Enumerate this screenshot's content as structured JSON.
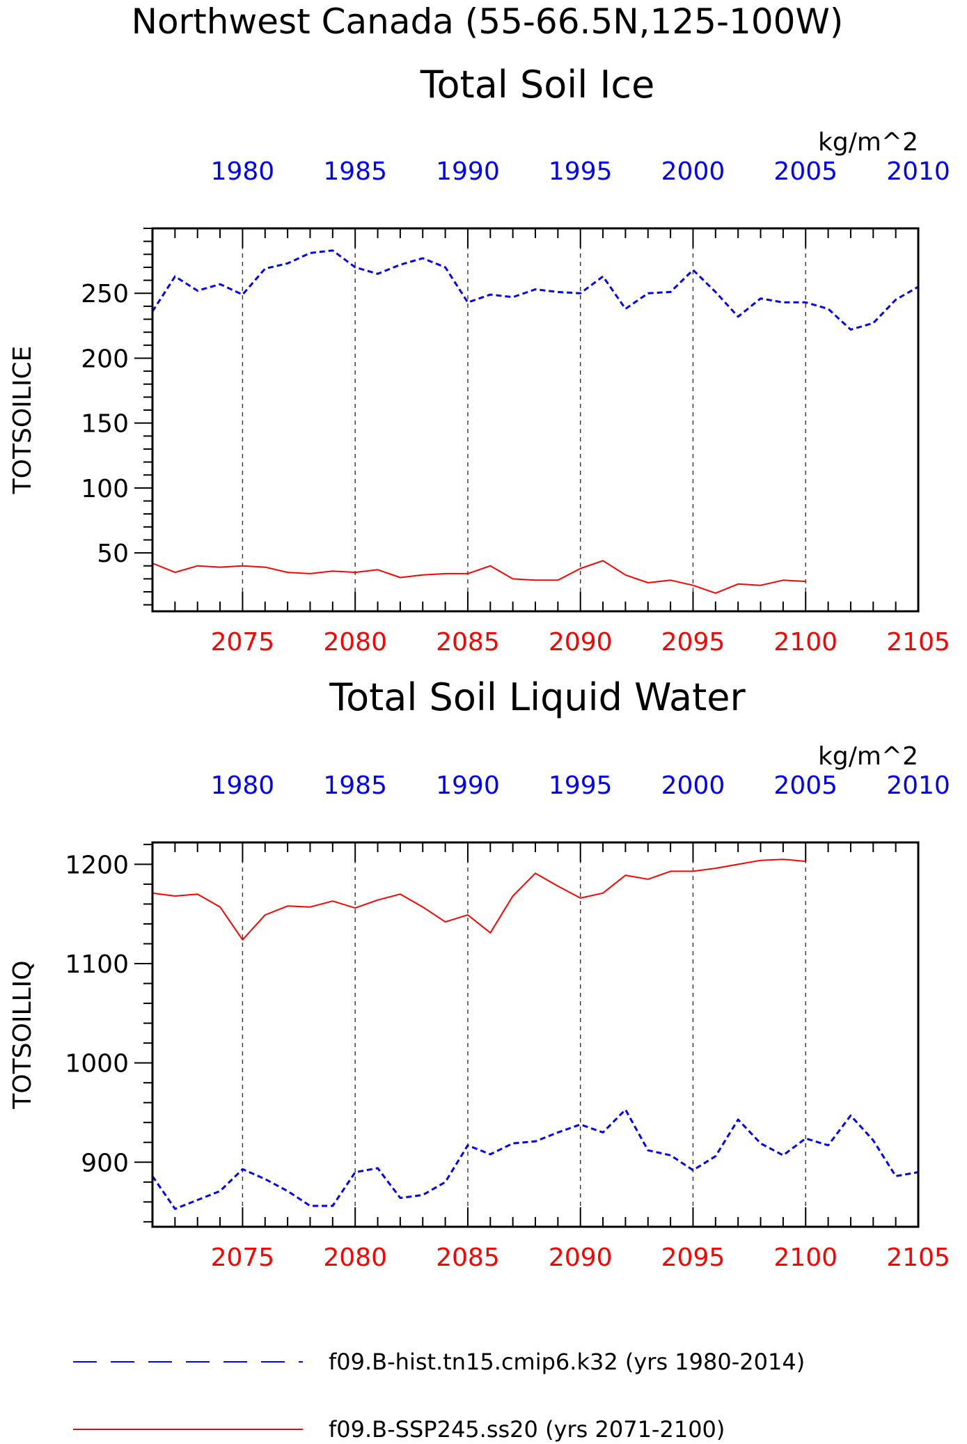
{
  "figure": {
    "title": "Northwest Canada (55-66.5N,125-100W)",
    "legend": [
      {
        "label": "f09.B-hist.tn15.cmip6.k32 (yrs 1980-2014)",
        "color": "#0000ff",
        "style": "dashed"
      },
      {
        "label": "f09.B-SSP245.ss20 (yrs 2071-2100)",
        "color": "#ff0000",
        "style": "solid"
      }
    ]
  },
  "chart_data": [
    {
      "type": "line",
      "title": "Total Soil Ice",
      "ylabel": "TOTSOILICE",
      "units": "kg/m^2",
      "ylim": [
        5,
        300
      ],
      "yticks": [
        50,
        100,
        150,
        200,
        250
      ],
      "y_minor_step": 10,
      "grid": "vertical dashed at bottom-axis major ticks",
      "x_bottom": {
        "lim": [
          2071,
          2105
        ],
        "ticks": [
          2075,
          2080,
          2085,
          2090,
          2095,
          2100,
          2105
        ],
        "color": "#ff0000"
      },
      "x_top": {
        "lim": [
          1976,
          2010
        ],
        "ticks": [
          1980,
          1985,
          1990,
          1995,
          2000,
          2005,
          2010
        ],
        "color": "#0000ff"
      },
      "series": [
        {
          "name": "f09.B-hist.tn15.cmip6.k32 (yrs 1980-2014)",
          "axis": "top",
          "color": "#0000ff",
          "style": "dashed",
          "x": [
            1976,
            1977,
            1978,
            1979,
            1980,
            1981,
            1982,
            1983,
            1984,
            1985,
            1986,
            1987,
            1988,
            1989,
            1990,
            1991,
            1992,
            1993,
            1994,
            1995,
            1996,
            1997,
            1998,
            1999,
            2000,
            2001,
            2002,
            2003,
            2004,
            2005,
            2006,
            2007,
            2008,
            2009,
            2010
          ],
          "y": [
            236,
            263,
            252,
            257,
            249,
            269,
            273,
            281,
            283,
            270,
            265,
            272,
            277,
            270,
            243,
            249,
            247,
            253,
            251,
            250,
            263,
            238,
            250,
            251,
            268,
            251,
            232,
            246,
            243,
            243,
            238,
            222,
            227,
            245,
            255
          ]
        },
        {
          "name": "f09.B-SSP245.ss20 (yrs 2071-2100)",
          "axis": "bottom",
          "color": "#ff0000",
          "style": "solid",
          "x": [
            2071,
            2072,
            2073,
            2074,
            2075,
            2076,
            2077,
            2078,
            2079,
            2080,
            2081,
            2082,
            2083,
            2084,
            2085,
            2086,
            2087,
            2088,
            2089,
            2090,
            2091,
            2092,
            2093,
            2094,
            2095,
            2096,
            2097,
            2098,
            2099,
            2100
          ],
          "y": [
            42,
            35,
            40,
            39,
            40,
            39,
            35,
            34,
            36,
            35,
            37,
            31,
            33,
            34,
            34,
            40,
            30,
            29,
            29,
            38,
            44,
            33,
            27,
            29,
            25,
            19,
            26,
            25,
            29,
            28
          ]
        }
      ]
    },
    {
      "type": "line",
      "title": "Total Soil Liquid Water",
      "ylabel": "TOTSOILLIQ",
      "units": "kg/m^2",
      "ylim": [
        835,
        1222
      ],
      "yticks": [
        900,
        1000,
        1100,
        1200
      ],
      "y_minor_step": 20,
      "grid": "vertical dashed at bottom-axis major ticks",
      "x_bottom": {
        "lim": [
          2071,
          2105
        ],
        "ticks": [
          2075,
          2080,
          2085,
          2090,
          2095,
          2100,
          2105
        ],
        "color": "#ff0000"
      },
      "x_top": {
        "lim": [
          1976,
          2010
        ],
        "ticks": [
          1980,
          1985,
          1990,
          1995,
          2000,
          2005,
          2010
        ],
        "color": "#0000ff"
      },
      "series": [
        {
          "name": "f09.B-hist.tn15.cmip6.k32 (yrs 1980-2014)",
          "axis": "top",
          "color": "#0000ff",
          "style": "dashed",
          "x": [
            1976,
            1977,
            1978,
            1979,
            1980,
            1981,
            1982,
            1983,
            1984,
            1985,
            1986,
            1987,
            1988,
            1989,
            1990,
            1991,
            1992,
            1993,
            1994,
            1995,
            1996,
            1997,
            1998,
            1999,
            2000,
            2001,
            2002,
            2003,
            2004,
            2005,
            2006,
            2007,
            2008,
            2009,
            2010
          ],
          "y": [
            886,
            853,
            862,
            871,
            893,
            883,
            871,
            856,
            856,
            890,
            894,
            864,
            867,
            880,
            917,
            908,
            919,
            921,
            930,
            938,
            930,
            953,
            912,
            907,
            892,
            906,
            943,
            919,
            907,
            924,
            917,
            947,
            922,
            886,
            890
          ]
        },
        {
          "name": "f09.B-SSP245.ss20 (yrs 2071-2100)",
          "axis": "bottom",
          "color": "#ff0000",
          "style": "solid",
          "x": [
            2071,
            2072,
            2073,
            2074,
            2075,
            2076,
            2077,
            2078,
            2079,
            2080,
            2081,
            2082,
            2083,
            2084,
            2085,
            2086,
            2087,
            2088,
            2089,
            2090,
            2091,
            2092,
            2093,
            2094,
            2095,
            2096,
            2097,
            2098,
            2099,
            2100
          ],
          "y": [
            1171,
            1168,
            1170,
            1157,
            1124,
            1149,
            1158,
            1157,
            1163,
            1156,
            1164,
            1170,
            1157,
            1142,
            1149,
            1131,
            1168,
            1191,
            1178,
            1166,
            1171,
            1189,
            1185,
            1193,
            1193,
            1196,
            1200,
            1204,
            1205,
            1203
          ]
        }
      ]
    }
  ]
}
